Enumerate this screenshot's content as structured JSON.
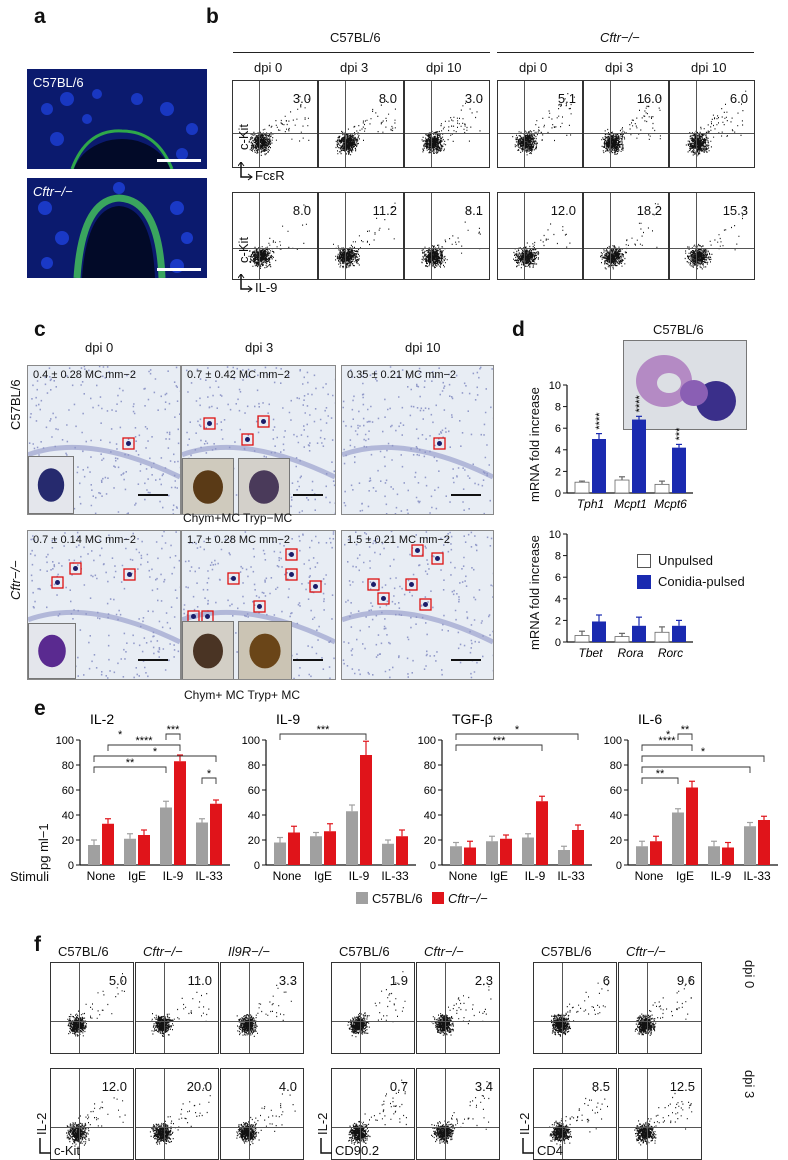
{
  "panels": {
    "a": "a",
    "b": "b",
    "c": "c",
    "d": "d",
    "e": "e",
    "f": "f"
  },
  "panel_a": {
    "strain1": "C57BL/6",
    "strain2": "Cftr−/−"
  },
  "panel_b": {
    "group1": "C57BL/6",
    "group2": "Cftr−/−",
    "cols": [
      "dpi 0",
      "dpi 3",
      "dpi 10",
      "dpi 0",
      "dpi 3",
      "dpi 10"
    ],
    "row1_values": [
      "3.0",
      "8.0",
      "3.0",
      "5.1",
      "16.0",
      "6.0"
    ],
    "row2_values": [
      "8.0",
      "11.2",
      "8.1",
      "12.0",
      "18.2",
      "15.3"
    ],
    "y_label": "c-Kit",
    "x_label_row1": "FcεR",
    "x_label_row2": "IL-9"
  },
  "panel_c": {
    "cols": [
      "dpi 0",
      "dpi 3",
      "dpi 10"
    ],
    "rows": [
      "C57BL/6",
      "Cftr−/−"
    ],
    "notes_row1": [
      "0.4 ± 0.28 MC mm−2",
      "0.7 ± 0.42 MC mm−2",
      "0.35 ± 0.21 MC mm−2"
    ],
    "notes_row2": [
      "0.7 ± 0.14 MC mm−2",
      "1.7 ± 0.28 MC mm−2",
      "1.5 ± 0.21 MC mm−2"
    ],
    "inset_label_row1a": "Chym+MC",
    "inset_label_row1b": "Tryp−MC",
    "inset_label_row2": "Chym+ MC Tryp+ MC"
  },
  "panel_d": {
    "image_label": "C57BL/6",
    "ylabel": "mRNA fold increase",
    "legend": [
      "Unpulsed",
      "Conidia-pulsed"
    ]
  },
  "panel_e": {
    "ylabel": "pg ml−1",
    "stimuli_label": "Stimuli",
    "legend": [
      "C57BL/6",
      "Cftr−/−"
    ]
  },
  "panel_f": {
    "headers_left": [
      "C57BL/6",
      "Cftr−/−",
      "Il9R−/−"
    ],
    "headers_mid": [
      "C57BL/6",
      "Cftr−/−"
    ],
    "headers_right": [
      "C57BL/6",
      "Cftr−/−"
    ],
    "row1_values": [
      "5.0",
      "11.0",
      "3.3",
      "1.9",
      "2.3",
      "6",
      "9.6"
    ],
    "row2_values": [
      "12.0",
      "20.0",
      "4.0",
      "0.7",
      "3.4",
      "8.5",
      "12.5"
    ],
    "row_labels": [
      "dpi 0",
      "dpi 3"
    ],
    "y_label": "IL-2",
    "x_labels": [
      "c-Kit",
      "CD90.2",
      "CD4"
    ]
  },
  "colors": {
    "wt": "#a0a0a0",
    "ko": "#e0141a",
    "unpulsed": "#ffffff",
    "pulsed": "#1a2ab0"
  },
  "chart_data": [
    {
      "type": "bar",
      "panel": "d-top",
      "categories": [
        "Tph1",
        "Mcpt1",
        "Mcpt6"
      ],
      "series": [
        {
          "name": "Unpulsed",
          "values": [
            1.0,
            1.2,
            0.8
          ]
        },
        {
          "name": "Conidia-pulsed",
          "values": [
            5.0,
            6.8,
            4.2
          ]
        }
      ],
      "errors": [
        [
          0.1,
          0.3,
          0.3
        ],
        [
          0.5,
          0.3,
          0.3
        ]
      ],
      "significance": [
        "****",
        "****",
        "***"
      ],
      "ylim": [
        0,
        10
      ],
      "yticks": [
        "0",
        "2",
        "4",
        "6",
        "8",
        "10"
      ]
    },
    {
      "type": "bar",
      "panel": "d-bottom",
      "categories": [
        "Tbet",
        "Rora",
        "Rorc"
      ],
      "series": [
        {
          "name": "Unpulsed",
          "values": [
            0.6,
            0.5,
            0.9
          ]
        },
        {
          "name": "Conidia-pulsed",
          "values": [
            1.9,
            1.5,
            1.5
          ]
        }
      ],
      "errors": [
        [
          0.4,
          0.3,
          0.5
        ],
        [
          0.6,
          0.8,
          0.5
        ]
      ],
      "ylim": [
        0,
        10
      ],
      "yticks": [
        "0",
        "2",
        "4",
        "6",
        "8",
        "10"
      ]
    },
    {
      "type": "bar",
      "panel": "e-1",
      "title": "IL-2",
      "categories": [
        "None",
        "IgE",
        "IL-9",
        "IL-33"
      ],
      "series": [
        {
          "name": "C57BL/6",
          "values": [
            16,
            21,
            46,
            34
          ]
        },
        {
          "name": "Cftr−/−",
          "values": [
            33,
            24,
            83,
            49
          ]
        }
      ],
      "errors": [
        [
          4,
          4,
          5,
          3
        ],
        [
          4,
          4,
          5,
          3
        ]
      ],
      "ylim": [
        0,
        100
      ],
      "yticks": [
        "0",
        "20",
        "40",
        "60",
        "80",
        "100"
      ],
      "brackets": [
        {
          "from": [
            2,
            0
          ],
          "to": [
            2,
            1
          ],
          "label": "***",
          "level": 0
        },
        {
          "from": [
            0,
            1
          ],
          "to": [
            2,
            1
          ],
          "label": "****",
          "level": 1
        },
        {
          "from": [
            0,
            0
          ],
          "to": [
            3,
            1
          ],
          "label": "*",
          "level": 2
        },
        {
          "from": [
            0,
            0
          ],
          "to": [
            2,
            0
          ],
          "label": "**",
          "level": 3
        },
        {
          "from": [
            3,
            0
          ],
          "to": [
            3,
            1
          ],
          "label": "*",
          "level": 4
        }
      ],
      "asterisk_extra": "*"
    },
    {
      "type": "bar",
      "panel": "e-2",
      "title": "IL-9",
      "categories": [
        "None",
        "IgE",
        "IL-9",
        "IL-33"
      ],
      "series": [
        {
          "name": "C57BL/6",
          "values": [
            18,
            23,
            43,
            17
          ]
        },
        {
          "name": "Cftr−/−",
          "values": [
            26,
            27,
            88,
            23
          ]
        }
      ],
      "errors": [
        [
          4,
          3,
          5,
          3
        ],
        [
          5,
          6,
          11,
          5
        ]
      ],
      "ylim": [
        0,
        100
      ],
      "yticks": [
        "0",
        "20",
        "40",
        "60",
        "80",
        "100"
      ],
      "brackets": [
        {
          "from": [
            0,
            0
          ],
          "to": [
            2,
            1
          ],
          "label": "***",
          "level": 0
        }
      ]
    },
    {
      "type": "bar",
      "panel": "e-3",
      "title": "TGF-β",
      "categories": [
        "None",
        "IgE",
        "IL-9",
        "IL-33"
      ],
      "series": [
        {
          "name": "C57BL/6",
          "values": [
            15,
            19,
            22,
            12
          ]
        },
        {
          "name": "Cftr−/−",
          "values": [
            14,
            21,
            51,
            28
          ]
        }
      ],
      "errors": [
        [
          3,
          4,
          3,
          3
        ],
        [
          5,
          3,
          4,
          4
        ]
      ],
      "ylim": [
        0,
        100
      ],
      "yticks": [
        "0",
        "20",
        "40",
        "60",
        "80",
        "100"
      ],
      "brackets": [
        {
          "from": [
            0,
            0
          ],
          "to": [
            3,
            1
          ],
          "label": "*",
          "level": 0
        },
        {
          "from": [
            0,
            0
          ],
          "to": [
            2,
            1
          ],
          "label": "***",
          "level": 1
        }
      ]
    },
    {
      "type": "bar",
      "panel": "e-4",
      "title": "IL-6",
      "categories": [
        "None",
        "IgE",
        "IL-9",
        "IL-33"
      ],
      "series": [
        {
          "name": "C57BL/6",
          "values": [
            15,
            42,
            15,
            31
          ]
        },
        {
          "name": "Cftr−/−",
          "values": [
            19,
            62,
            14,
            36
          ]
        }
      ],
      "errors": [
        [
          4,
          3,
          4,
          3
        ],
        [
          4,
          5,
          4,
          3
        ]
      ],
      "ylim": [
        0,
        100
      ],
      "yticks": [
        "0",
        "20",
        "40",
        "60",
        "80",
        "100"
      ],
      "brackets": [
        {
          "from": [
            1,
            0
          ],
          "to": [
            1,
            1
          ],
          "label": "**",
          "level": 0
        },
        {
          "from": [
            0,
            0
          ],
          "to": [
            1,
            1
          ],
          "label": "****",
          "level": 1
        },
        {
          "from": [
            0,
            0
          ],
          "to": [
            3,
            1
          ],
          "label": "*",
          "level": 2
        },
        {
          "from": [
            0,
            0
          ],
          "to": [
            3,
            0
          ],
          "label": "",
          "level": 3
        },
        {
          "from": [
            0,
            0
          ],
          "to": [
            1,
            0
          ],
          "label": "**",
          "level": 4
        }
      ],
      "asterisk_extra": "*"
    }
  ]
}
